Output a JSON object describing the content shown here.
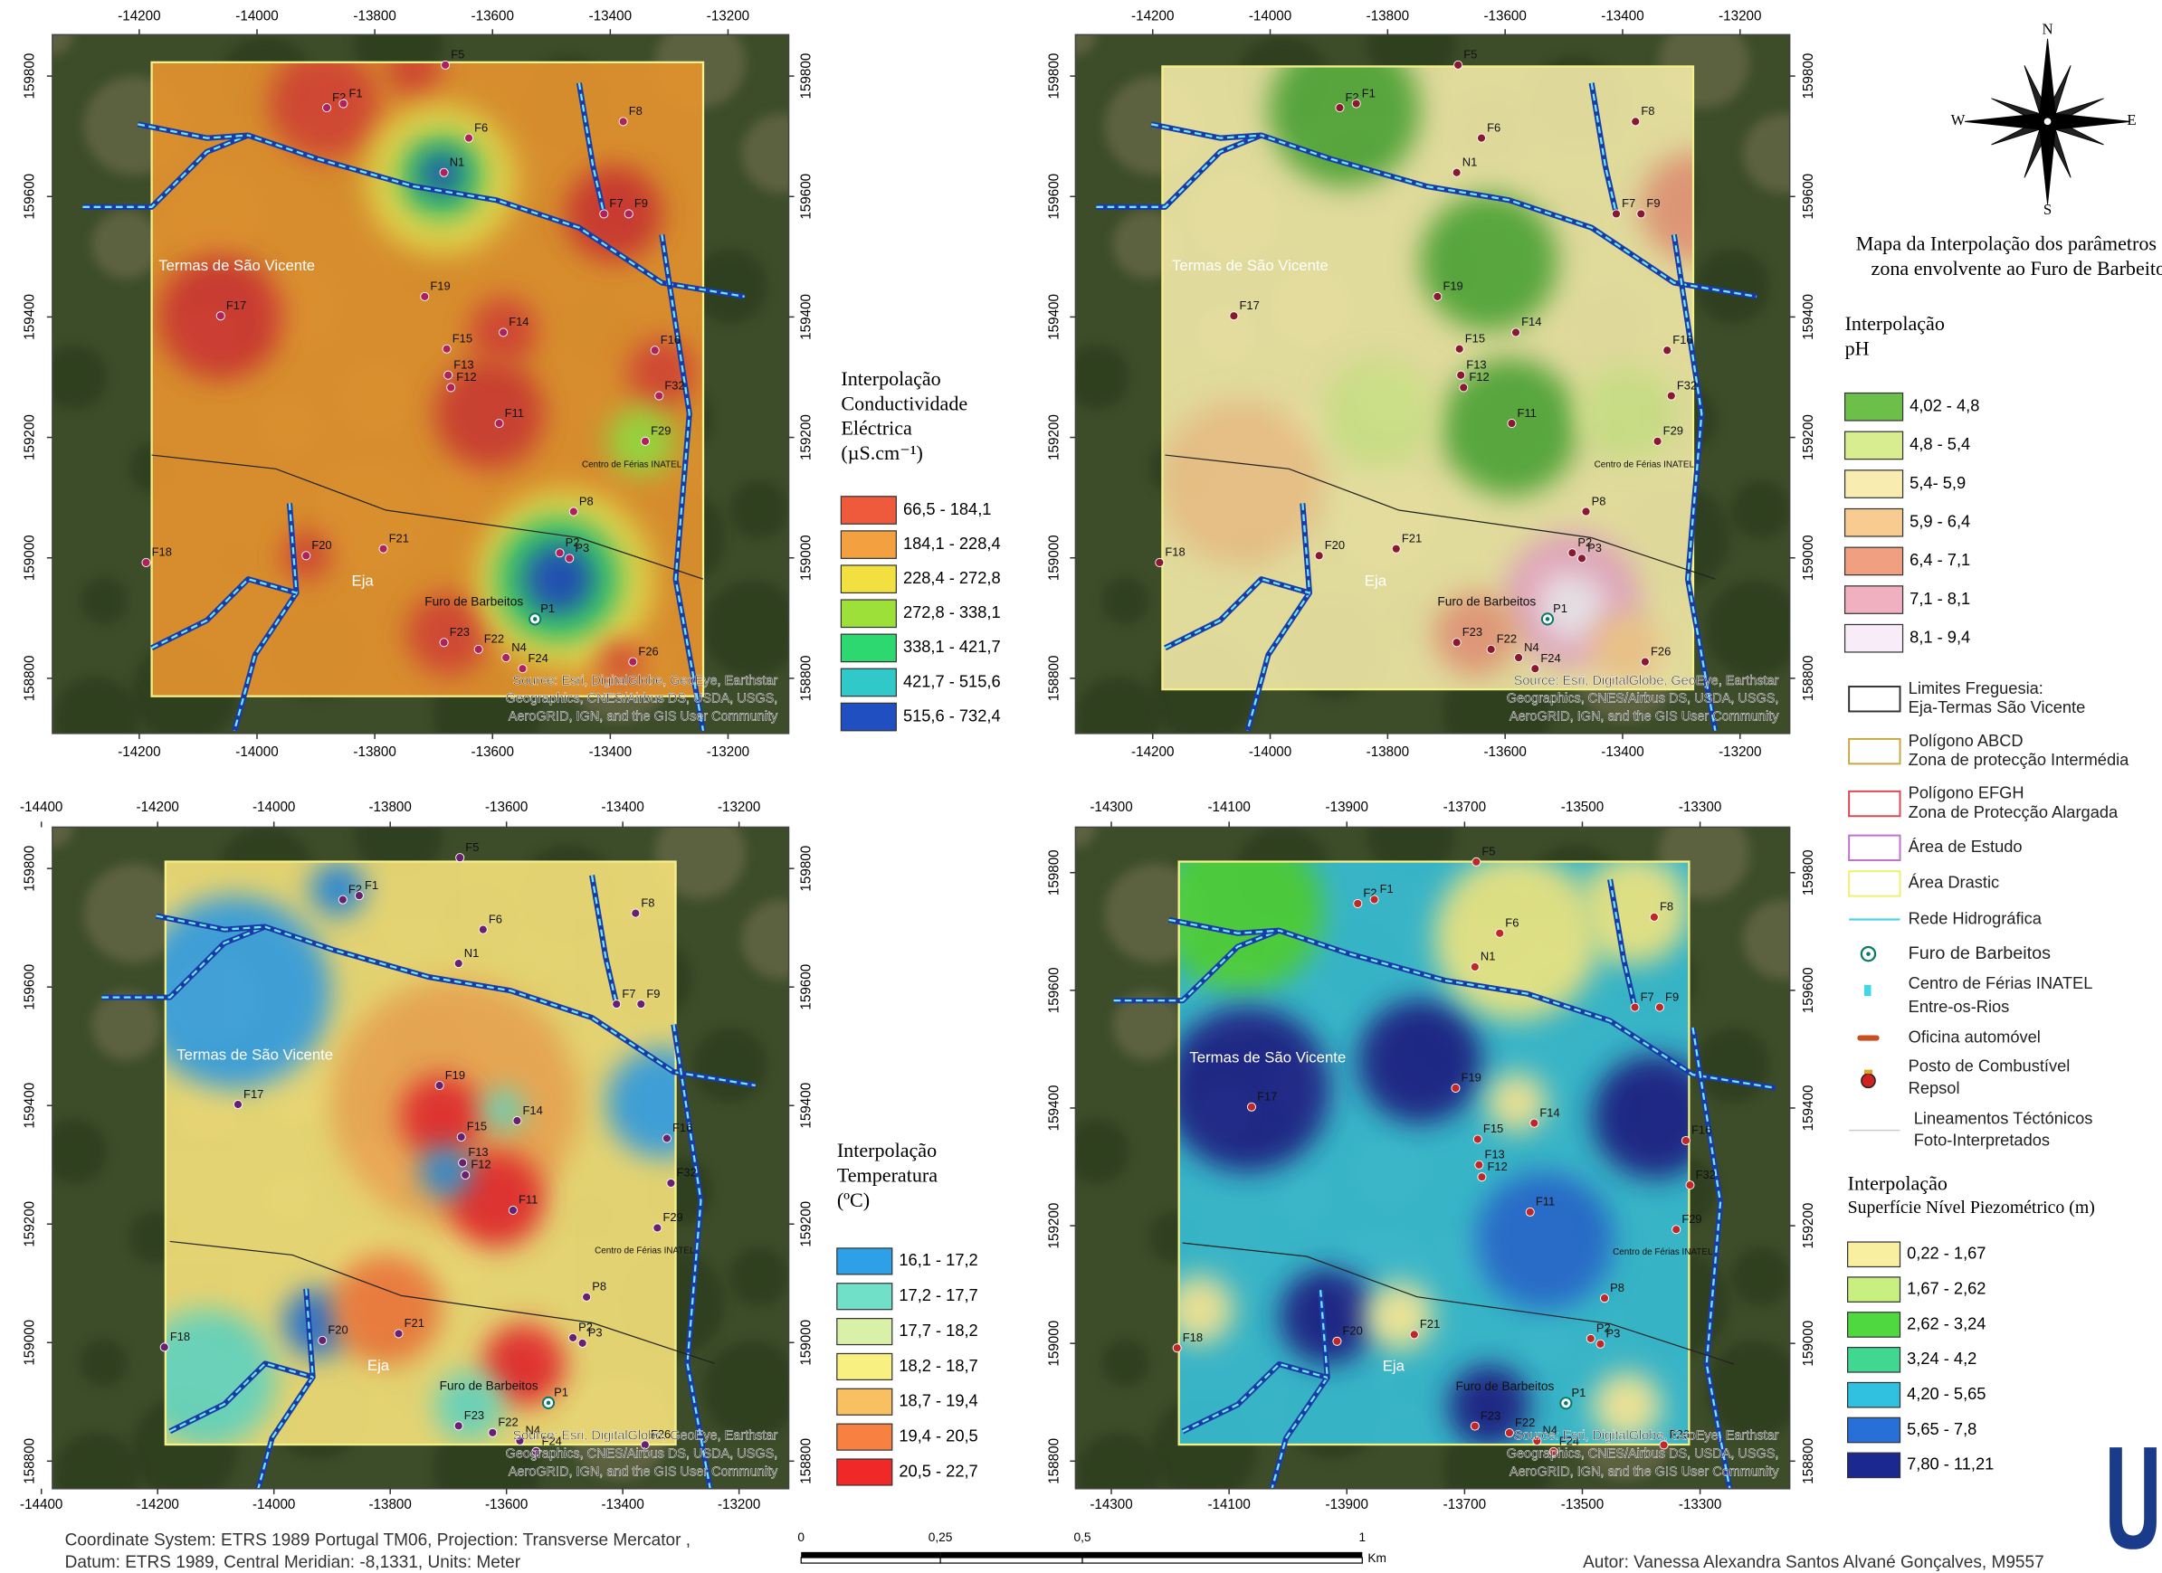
{
  "maps": [
    {
      "xticks": [
        -14200,
        -14000,
        -13800,
        -13600,
        -13400,
        -13200
      ],
      "yticks": [
        159800,
        159600,
        159400,
        159200,
        159000,
        158800
      ]
    },
    {
      "xticks": [
        -14200,
        -14000,
        -13800,
        -13600,
        -13400,
        -13200
      ],
      "yticks": [
        159800,
        159600,
        159400,
        159200,
        159000,
        158800
      ]
    },
    {
      "xticks": [
        -14400,
        -14200,
        -14000,
        -13800,
        -13600,
        -13400,
        -13200
      ],
      "yticks": [
        159800,
        159600,
        159400,
        159200,
        159000,
        158800
      ]
    },
    {
      "xticks": [
        -14300,
        -14100,
        -13900,
        -13700,
        -13500,
        -13300
      ],
      "yticks": [
        159800,
        159600,
        159400,
        159200,
        159000,
        158800
      ]
    }
  ],
  "wells": [
    "F5",
    "F2",
    "F1",
    "F8",
    "F6",
    "N1",
    "F7",
    "F9",
    "F17",
    "F19",
    "F14",
    "F15",
    "F13",
    "F12",
    "F11",
    "F16",
    "F32",
    "F29",
    "P8",
    "F21",
    "F20",
    "F18",
    "P2",
    "P3",
    "P1",
    "F23",
    "F22",
    "N4",
    "F24",
    "F26"
  ],
  "place_labels": {
    "termas": "Termas de São Vicente",
    "eja": "Eja",
    "furo": "Furo de Barbeitos",
    "centro": "Centro de Férias INATEL"
  },
  "attribution": [
    "Source: Esri, DigitalGlobe, GeoEye, Earthstar",
    "Geographics, CNES/Airbus DS, USDA, USGS,",
    "AeroGRID, IGN, and the GIS User Community"
  ],
  "compass": {
    "n": "N",
    "s": "S",
    "e": "E",
    "w": "W"
  },
  "title": [
    "Mapa da Interpolação dos parâmetros",
    "zona envolvente ao Furo de Barbeitos"
  ],
  "legends": [
    {
      "title": [
        "Interpolação",
        "Conductividade",
        "Eléctrica",
        "(µS.cm⁻¹)"
      ],
      "classes": [
        {
          "label": "66,5 - 184,1",
          "color": "#ef5a3c"
        },
        {
          "label": "184,1 - 228,4",
          "color": "#f2a040"
        },
        {
          "label": "228,4 - 272,8",
          "color": "#f2e040"
        },
        {
          "label": "272,8 - 338,1",
          "color": "#9ee03a"
        },
        {
          "label": "338,1 - 421,7",
          "color": "#2ed870"
        },
        {
          "label": "421,7 - 515,6",
          "color": "#30c8c8"
        },
        {
          "label": "515,6 - 732,4",
          "color": "#1f4fc0"
        }
      ]
    },
    {
      "title": [
        "Interpolação",
        "pH"
      ],
      "classes": [
        {
          "label": "4,02 - 4,8",
          "color": "#6cc04a"
        },
        {
          "label": "4,8 - 5,4",
          "color": "#d8ec90"
        },
        {
          "label": "5,4- 5,9",
          "color": "#f8ecb0"
        },
        {
          "label": "5,9 - 6,4",
          "color": "#f8cc90"
        },
        {
          "label": "6,4 - 7,1",
          "color": "#f0a080"
        },
        {
          "label": "7,1 - 8,1",
          "color": "#f0b0c0"
        },
        {
          "label": "8,1 - 9,4",
          "color": "#f8ecf8"
        }
      ]
    },
    {
      "title": [
        "Interpolação",
        "Temperatura",
        "(ºC)"
      ],
      "classes": [
        {
          "label": "16,1 - 17,2",
          "color": "#2ea0e8"
        },
        {
          "label": "17,2 - 17,7",
          "color": "#70e0c8"
        },
        {
          "label": "17,7 - 18,2",
          "color": "#d8f0a8"
        },
        {
          "label": "18,2 - 18,7",
          "color": "#f8f080"
        },
        {
          "label": "18,7 - 19,4",
          "color": "#f8c060"
        },
        {
          "label": "19,4 - 20,5",
          "color": "#f88040"
        },
        {
          "label": "20,5 - 22,7",
          "color": "#f02828"
        }
      ]
    },
    {
      "title": [
        "Interpolação",
        "Superfície Nível Piezométrico (m)"
      ],
      "classes": [
        {
          "label": "0,22 - 1,67",
          "color": "#f8f0a0"
        },
        {
          "label": "1,67 - 2,62",
          "color": "#c8f080"
        },
        {
          "label": "2,62 - 3,24",
          "color": "#50d840"
        },
        {
          "label": "3,24 - 4,2",
          "color": "#40d890"
        },
        {
          "label": "4,20 - 5,65",
          "color": "#30c0e0"
        },
        {
          "label": "5,65 - 7,8",
          "color": "#2870d8"
        },
        {
          "label": "7,80 - 11,21",
          "color": "#1a2890"
        }
      ]
    }
  ],
  "layers": [
    {
      "label": [
        "Limites Freguesia:",
        "Eja-Termas São Vicente"
      ]
    },
    {
      "label": [
        "Polígono ABCD",
        "Zona de protecção Intermédia"
      ]
    },
    {
      "label": [
        "Polígono EFGH",
        "Zona de Protecção Alargada"
      ]
    },
    {
      "label": [
        "Área de Estudo"
      ]
    },
    {
      "label": [
        "Área Drastic"
      ]
    },
    {
      "label": [
        "Rede Hidrográfica"
      ]
    },
    {
      "label": [
        "Furo de Barbeitos"
      ]
    },
    {
      "label": [
        "Centro de Férias INATEL",
        "Entre-os-Rios"
      ]
    },
    {
      "label": [
        "Oficina automóvel"
      ]
    },
    {
      "label": [
        "Posto de Combustível",
        "Repsol"
      ]
    },
    {
      "label": [
        "Lineamentos Téctónicos",
        "Foto-Interpretados"
      ]
    }
  ],
  "footer": {
    "coordinates": [
      "Coordinate System: ETRS 1989 Portugal TM06, Projection: Transverse Mercator ,",
      "Datum: ETRS 1989, Central Meridian: -8,1331, Units: Meter"
    ],
    "scale_labels": [
      "0",
      "0,25",
      "0,5",
      "1"
    ],
    "scale_unit": "Km",
    "author": "Autor: Vanessa Alexandra Santos Alvané Gonçalves, M9557"
  }
}
